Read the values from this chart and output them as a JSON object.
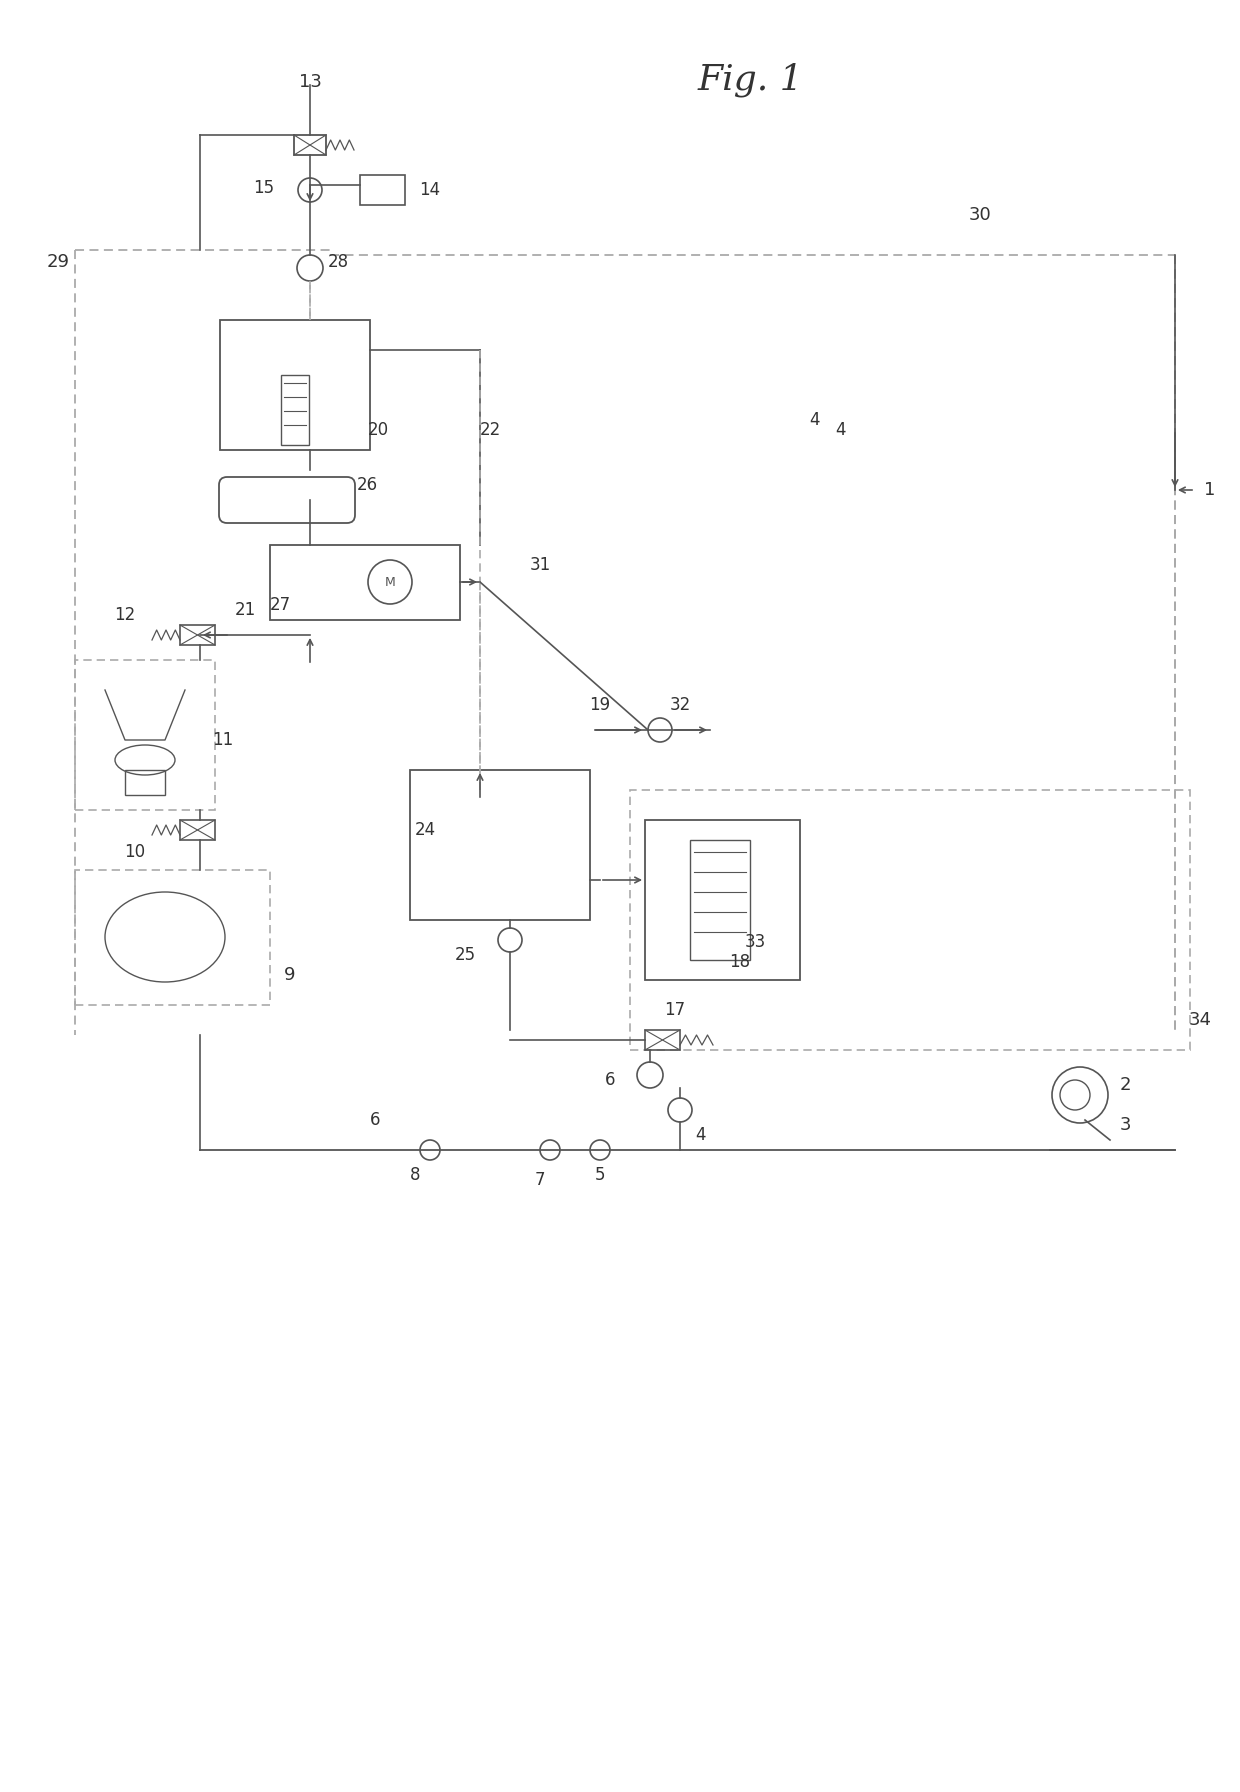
{
  "title": "Fig. 1",
  "bg": "#ffffff",
  "lc": "#999999",
  "dc": "#555555",
  "tc": "#333333"
}
